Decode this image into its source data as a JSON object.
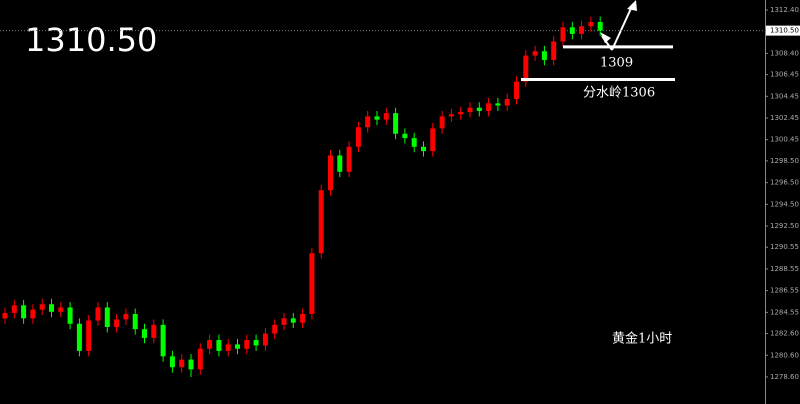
{
  "chart_data": {
    "type": "candlestick",
    "title": "黄金1小时",
    "up_color": "#ff0000",
    "down_color": "#00ff00",
    "ylim": [
      1276.11,
      1313.32
    ],
    "yticks": [
      {
        "value": 1312.4,
        "label": "1312.40"
      },
      {
        "value": 1308.4,
        "label": "1308.40"
      },
      {
        "value": 1306.45,
        "label": "1306.45"
      },
      {
        "value": 1304.45,
        "label": "1304.45"
      },
      {
        "value": 1302.45,
        "label": "1302.45"
      },
      {
        "value": 1300.45,
        "label": "1300.45"
      },
      {
        "value": 1298.5,
        "label": "1298.50"
      },
      {
        "value": 1296.5,
        "label": "1296.50"
      },
      {
        "value": 1294.5,
        "label": "1294.50"
      },
      {
        "value": 1292.5,
        "label": "1292.50"
      },
      {
        "value": 1290.55,
        "label": "1290.55"
      },
      {
        "value": 1288.55,
        "label": "1288.55"
      },
      {
        "value": 1286.55,
        "label": "1286.55"
      },
      {
        "value": 1284.55,
        "label": "1284.55"
      },
      {
        "value": 1282.6,
        "label": "1282.60"
      },
      {
        "value": 1280.6,
        "label": "1280.60"
      },
      {
        "value": 1278.6,
        "label": "1278.60"
      }
    ],
    "last_price": {
      "value": 1310.5,
      "label": "1310.50"
    },
    "levels": [
      {
        "value": 1309,
        "label": "1309"
      },
      {
        "value": 1306,
        "label": "分水岭1306"
      }
    ],
    "open": [
      1284.0,
      1284.5,
      1285.2,
      1284.0,
      1284.8,
      1285.3,
      1284.6,
      1285.0,
      1283.5,
      1281.0,
      1283.8,
      1285.0,
      1283.2,
      1283.9,
      1284.4,
      1283.0,
      1282.2,
      1283.4,
      1280.5,
      1279.5,
      1280.2,
      1279.3,
      1281.2,
      1282.0,
      1281.0,
      1281.6,
      1281.2,
      1282.0,
      1281.5,
      1282.6,
      1283.4,
      1284.0,
      1283.6,
      1284.4,
      1290.0,
      1295.8,
      1299.0,
      1297.5,
      1299.8,
      1301.6,
      1302.6,
      1302.3,
      1302.9,
      1301.0,
      1300.6,
      1299.8,
      1299.4,
      1301.5,
      1302.6,
      1302.8,
      1303.0,
      1303.4,
      1303.1,
      1303.8,
      1303.6,
      1304.2,
      1305.8,
      1308.2,
      1308.6,
      1307.8,
      1309.5,
      1310.8,
      1310.2,
      1310.9,
      1311.3
    ],
    "high": [
      1285.0,
      1285.7,
      1285.7,
      1285.3,
      1285.8,
      1285.8,
      1285.5,
      1285.5,
      1284.0,
      1284.3,
      1285.5,
      1285.5,
      1284.4,
      1284.9,
      1284.9,
      1283.5,
      1283.9,
      1283.9,
      1281.0,
      1280.7,
      1280.7,
      1281.7,
      1282.5,
      1282.5,
      1282.1,
      1282.1,
      1282.5,
      1282.5,
      1283.1,
      1283.9,
      1284.5,
      1284.5,
      1284.9,
      1290.5,
      1296.3,
      1299.5,
      1299.5,
      1300.3,
      1302.1,
      1303.1,
      1303.1,
      1303.4,
      1303.4,
      1301.5,
      1301.1,
      1300.3,
      1302.0,
      1303.1,
      1303.3,
      1303.5,
      1303.9,
      1303.9,
      1304.3,
      1304.3,
      1304.7,
      1306.3,
      1308.7,
      1309.1,
      1309.1,
      1310.0,
      1311.3,
      1311.3,
      1311.4,
      1311.8,
      1311.8
    ],
    "low": [
      1283.5,
      1284.0,
      1283.5,
      1283.5,
      1284.3,
      1284.1,
      1284.1,
      1283.0,
      1280.5,
      1280.5,
      1283.3,
      1282.7,
      1282.7,
      1283.4,
      1282.5,
      1281.7,
      1281.7,
      1280.0,
      1279.0,
      1279.0,
      1278.6,
      1278.8,
      1280.7,
      1280.5,
      1280.5,
      1280.7,
      1280.7,
      1281.0,
      1281.0,
      1282.1,
      1282.9,
      1283.1,
      1283.1,
      1283.9,
      1289.5,
      1295.3,
      1297.0,
      1297.0,
      1299.3,
      1301.1,
      1301.8,
      1301.8,
      1300.5,
      1300.1,
      1299.3,
      1298.9,
      1298.9,
      1301.0,
      1302.1,
      1302.3,
      1302.5,
      1302.6,
      1302.6,
      1303.1,
      1303.1,
      1303.7,
      1305.3,
      1307.7,
      1307.3,
      1307.3,
      1309.0,
      1309.7,
      1309.7,
      1310.4,
      1310.0
    ],
    "close": [
      1284.5,
      1285.2,
      1284.0,
      1284.8,
      1285.3,
      1284.6,
      1285.0,
      1283.5,
      1281.0,
      1283.8,
      1285.0,
      1283.2,
      1283.9,
      1284.4,
      1283.0,
      1282.2,
      1283.4,
      1280.5,
      1279.5,
      1280.2,
      1279.3,
      1281.2,
      1282.0,
      1281.0,
      1281.6,
      1281.2,
      1282.0,
      1281.5,
      1282.6,
      1283.4,
      1284.0,
      1283.6,
      1284.4,
      1290.0,
      1295.8,
      1299.0,
      1297.5,
      1299.8,
      1301.6,
      1302.6,
      1302.3,
      1302.9,
      1301.0,
      1300.6,
      1299.8,
      1299.4,
      1301.5,
      1302.6,
      1302.8,
      1303.0,
      1303.4,
      1303.1,
      1303.8,
      1303.6,
      1304.2,
      1305.8,
      1308.2,
      1308.6,
      1307.8,
      1309.5,
      1310.8,
      1310.2,
      1310.9,
      1311.3,
      1310.5
    ]
  }
}
